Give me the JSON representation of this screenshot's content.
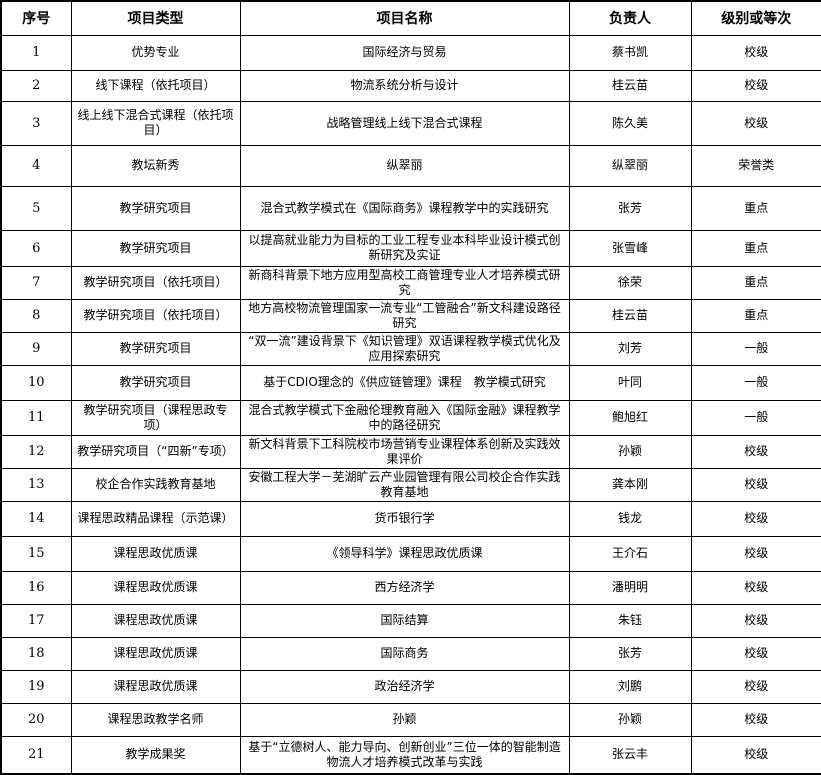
{
  "colors": {
    "border": "#000000",
    "text": "#000000",
    "background": "#ffffff"
  },
  "table": {
    "columns": [
      {
        "key": "no",
        "label": "序号"
      },
      {
        "key": "type",
        "label": "项目类型"
      },
      {
        "key": "name",
        "label": "项目名称"
      },
      {
        "key": "leader",
        "label": "负责人"
      },
      {
        "key": "level",
        "label": "级别或等次"
      }
    ],
    "rows": [
      {
        "no": "1",
        "type": "优势专业",
        "name": "国际经济与贸易",
        "leader": "蔡书凯",
        "level": "校级"
      },
      {
        "no": "2",
        "type": "线下课程（依托项目）",
        "name": "物流系统分析与设计",
        "leader": "桂云苗",
        "level": "校级"
      },
      {
        "no": "3",
        "type": "线上线下混合式课程（依托项目）",
        "name": "战略管理线上线下混合式课程",
        "leader": "陈久美",
        "level": "校级"
      },
      {
        "no": "4",
        "type": "教坛新秀",
        "name": "纵翠丽",
        "leader": "纵翠丽",
        "level": "荣誉类"
      },
      {
        "no": "5",
        "type": "教学研究项目",
        "name": "混合式教学模式在《国际商务》课程教学中的实践研究",
        "leader": "张芳",
        "level": "重点"
      },
      {
        "no": "6",
        "type": "教学研究项目",
        "name": "以提高就业能力为目标的工业工程专业本科毕业设计模式创新研究及实证",
        "leader": "张雪峰",
        "level": "重点"
      },
      {
        "no": "7",
        "type": "教学研究项目（依托项目）",
        "name": "新商科背景下地方应用型高校工商管理专业人才培养模式研究",
        "leader": "徐荣",
        "level": "重点"
      },
      {
        "no": "8",
        "type": "教学研究项目（依托项目）",
        "name": "地方高校物流管理国家一流专业“工管融合”新文科建设路径研究",
        "leader": "桂云苗",
        "level": "重点"
      },
      {
        "no": "9",
        "type": "教学研究项目",
        "name": "“双一流”建设背景下《知识管理》双语课程教学模式优化及应用探索研究",
        "leader": "刘芳",
        "level": "一般"
      },
      {
        "no": "10",
        "type": "教学研究项目",
        "name": "基于CDIO理念的《供应链管理》课程　教学模式研究",
        "leader": "叶同",
        "level": "一般"
      },
      {
        "no": "11",
        "type": "教学研究项目（课程思政专项）",
        "name": "混合式教学模式下金融伦理教育融入《国际金融》课程教学中的路径研究",
        "leader": "鲍旭红",
        "level": "一般"
      },
      {
        "no": "12",
        "type": "教学研究项目（“四新”专项）",
        "name": "新文科背景下工科院校市场营销专业课程体系创新及实践效果评价",
        "leader": "孙颖",
        "level": "校级"
      },
      {
        "no": "13",
        "type": "校企合作实践教育基地",
        "name": "安徽工程大学－芜湖旷云产业园管理有限公司校企合作实践教育基地",
        "leader": "龚本刚",
        "level": "校级"
      },
      {
        "no": "14",
        "type": "课程思政精品课程（示范课）",
        "name": "货币银行学",
        "leader": "钱龙",
        "level": "校级"
      },
      {
        "no": "15",
        "type": "课程思政优质课",
        "name": "《领导科学》课程思政优质课",
        "leader": "王介石",
        "level": "校级"
      },
      {
        "no": "16",
        "type": "课程思政优质课",
        "name": "西方经济学",
        "leader": "潘明明",
        "level": "校级"
      },
      {
        "no": "17",
        "type": "课程思政优质课",
        "name": "国际结算",
        "leader": "朱钰",
        "level": "校级"
      },
      {
        "no": "18",
        "type": "课程思政优质课",
        "name": "国际商务",
        "leader": "张芳",
        "level": "校级"
      },
      {
        "no": "19",
        "type": "课程思政优质课",
        "name": "政治经济学",
        "leader": "刘鹏",
        "level": "校级"
      },
      {
        "no": "20",
        "type": "课程思政教学名师",
        "name": "孙颖",
        "leader": "孙颖",
        "level": "校级"
      },
      {
        "no": "21",
        "type": "教学成果奖",
        "name": "基于“立德树人、能力导向、创新创业”三位一体的智能制造物流人才培养模式改革与实践",
        "leader": "张云丰",
        "level": "校级"
      }
    ]
  }
}
